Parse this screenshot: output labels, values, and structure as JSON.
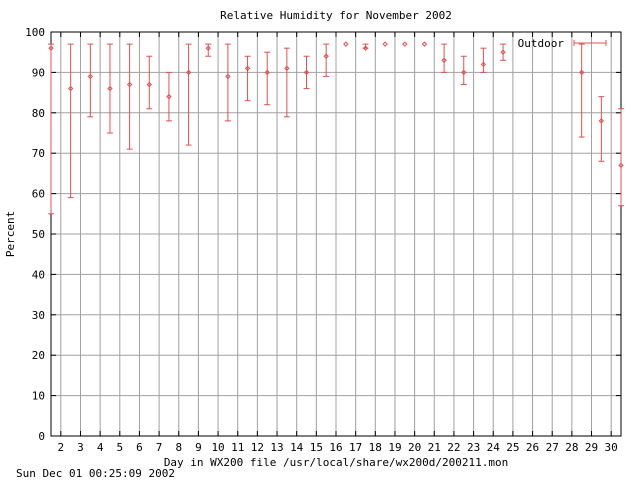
{
  "chart_data": {
    "type": "scatter",
    "title": "Relative Humidity for November 2002",
    "xlabel": "Day in WX200 file /usr/local/share/wx200d/200211.mon",
    "ylabel": "Percent",
    "footer": "Sun Dec 01 00:25:09 2002",
    "xlim": [
      1.5,
      30.5
    ],
    "ylim": [
      0,
      100
    ],
    "x_ticks": [
      2,
      3,
      4,
      5,
      6,
      7,
      8,
      9,
      10,
      11,
      12,
      13,
      14,
      15,
      16,
      17,
      18,
      19,
      20,
      21,
      22,
      23,
      24,
      25,
      26,
      27,
      28,
      29,
      30
    ],
    "y_ticks": [
      0,
      10,
      20,
      30,
      40,
      50,
      60,
      70,
      80,
      90,
      100
    ],
    "grid": true,
    "legend": "top-right",
    "series": [
      {
        "name": "Outdoor",
        "color": "#e05050",
        "points": [
          {
            "x": 1.5,
            "y": 96,
            "low": 55,
            "high": 97
          },
          {
            "x": 2.5,
            "y": 86,
            "low": 59,
            "high": 97
          },
          {
            "x": 3.5,
            "y": 89,
            "low": 79,
            "high": 97
          },
          {
            "x": 4.5,
            "y": 86,
            "low": 75,
            "high": 97
          },
          {
            "x": 5.5,
            "y": 87,
            "low": 71,
            "high": 97
          },
          {
            "x": 6.5,
            "y": 87,
            "low": 81,
            "high": 94
          },
          {
            "x": 7.5,
            "y": 84,
            "low": 78,
            "high": 90
          },
          {
            "x": 8.5,
            "y": 90,
            "low": 72,
            "high": 97
          },
          {
            "x": 9.5,
            "y": 96,
            "low": 94,
            "high": 97
          },
          {
            "x": 10.5,
            "y": 89,
            "low": 78,
            "high": 97
          },
          {
            "x": 11.5,
            "y": 91,
            "low": 83,
            "high": 94
          },
          {
            "x": 12.5,
            "y": 90,
            "low": 82,
            "high": 95
          },
          {
            "x": 13.5,
            "y": 91,
            "low": 79,
            "high": 96
          },
          {
            "x": 14.5,
            "y": 90,
            "low": 86,
            "high": 94
          },
          {
            "x": 15.5,
            "y": 94,
            "low": 89,
            "high": 97
          },
          {
            "x": 16.5,
            "y": 97,
            "low": 97,
            "high": 97
          },
          {
            "x": 17.5,
            "y": 96,
            "low": 96,
            "high": 97
          },
          {
            "x": 18.5,
            "y": 97,
            "low": 97,
            "high": 97
          },
          {
            "x": 19.5,
            "y": 97,
            "low": 97,
            "high": 97
          },
          {
            "x": 20.5,
            "y": 97,
            "low": 97,
            "high": 97
          },
          {
            "x": 21.5,
            "y": 93,
            "low": 90,
            "high": 97
          },
          {
            "x": 22.5,
            "y": 90,
            "low": 87,
            "high": 94
          },
          {
            "x": 23.5,
            "y": 92,
            "low": 90,
            "high": 96
          },
          {
            "x": 24.5,
            "y": 95,
            "low": 93,
            "high": 97
          },
          {
            "x": 28.5,
            "y": 90,
            "low": 74,
            "high": 97
          },
          {
            "x": 29.5,
            "y": 78,
            "low": 68,
            "high": 84
          },
          {
            "x": 30.5,
            "y": 67,
            "low": 57,
            "high": 81
          }
        ]
      }
    ]
  }
}
